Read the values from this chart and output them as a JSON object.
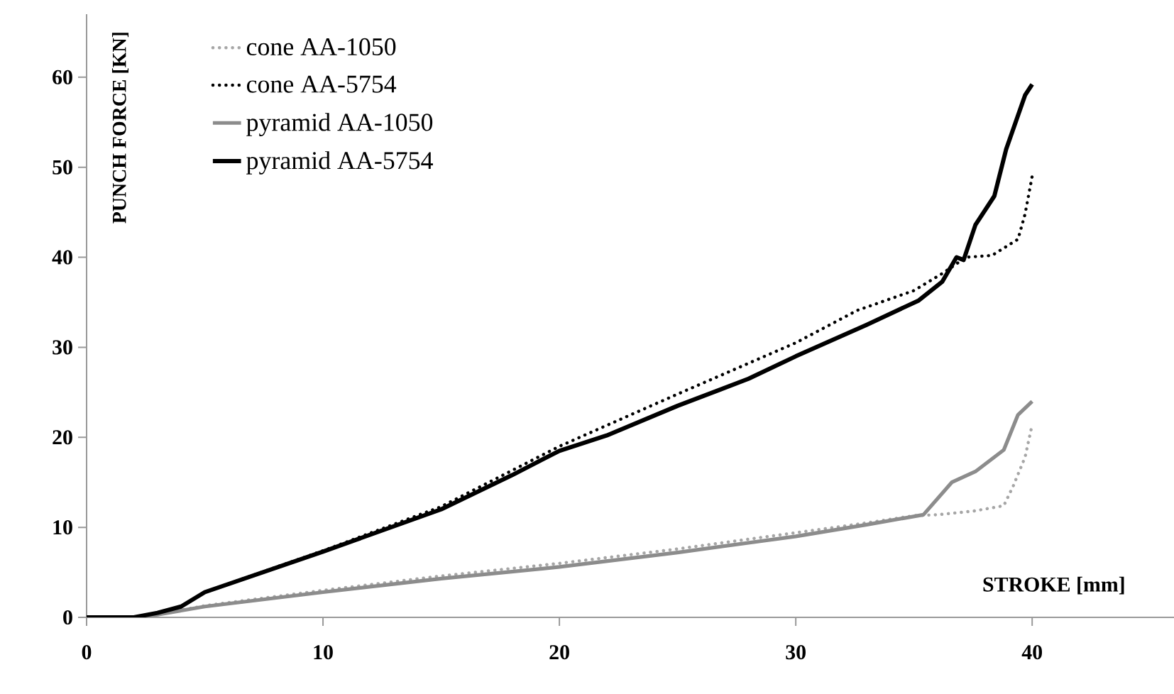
{
  "chart_data": {
    "type": "line",
    "xlabel": "STROKE [mm]",
    "ylabel": "PUNCH FORCE  [KN]",
    "xlim": [
      0,
      46
    ],
    "ylim": [
      0,
      67
    ],
    "xticks": [
      0,
      10,
      20,
      30,
      40
    ],
    "yticks": [
      0,
      10,
      20,
      30,
      40,
      50,
      60
    ],
    "legend": "top left",
    "series": [
      {
        "name": "cone AA-1050",
        "color": "#a6a6a6",
        "line_style": "dotted",
        "x": [
          0,
          2,
          3,
          5,
          10,
          15,
          20,
          25,
          30,
          33,
          35,
          36,
          37.5,
          38.8,
          39.2,
          39.7,
          40
        ],
        "values": [
          0,
          0,
          0.3,
          1.3,
          3.0,
          4.6,
          6.0,
          7.6,
          9.4,
          10.5,
          11.3,
          11.4,
          11.8,
          12.4,
          14.6,
          17.8,
          21.4
        ]
      },
      {
        "name": "cone AA-5754",
        "color": "#000000",
        "line_style": "dotted",
        "x": [
          0,
          2,
          3,
          4,
          5,
          10,
          15,
          20,
          25,
          30,
          32.6,
          35,
          36.2,
          37.2,
          38.3,
          39.4,
          39.7,
          40
        ],
        "values": [
          0,
          0,
          0.5,
          1.2,
          2.8,
          7.4,
          12.3,
          19.0,
          24.8,
          30.5,
          34.1,
          36.3,
          38.2,
          40.0,
          40.2,
          42.0,
          44.8,
          49.0
        ]
      },
      {
        "name": "pyramid AA-1050",
        "color": "#8c8c8c",
        "line_style": "solid",
        "x": [
          0,
          2,
          3,
          5,
          10,
          15,
          20,
          25,
          30,
          33,
          35.4,
          36.6,
          37.6,
          38.8,
          39.4,
          40
        ],
        "values": [
          0,
          0,
          0.3,
          1.2,
          2.8,
          4.3,
          5.6,
          7.2,
          9.0,
          10.3,
          11.4,
          15.0,
          16.2,
          18.6,
          22.5,
          24.0
        ]
      },
      {
        "name": "pyramid AA-5754",
        "color": "#000000",
        "line_style": "solid",
        "x": [
          0,
          2,
          3,
          4,
          5,
          10,
          15,
          18,
          20,
          22,
          25,
          28,
          30,
          33,
          35.2,
          36.2,
          36.8,
          37.1,
          37.6,
          38.4,
          38.9,
          39.7,
          40
        ],
        "values": [
          0,
          0,
          0.5,
          1.2,
          2.8,
          7.3,
          12.0,
          15.8,
          18.5,
          20.2,
          23.5,
          26.5,
          29.0,
          32.5,
          35.2,
          37.3,
          40.0,
          39.7,
          43.6,
          46.8,
          52.0,
          58.0,
          59.2
        ]
      }
    ]
  }
}
